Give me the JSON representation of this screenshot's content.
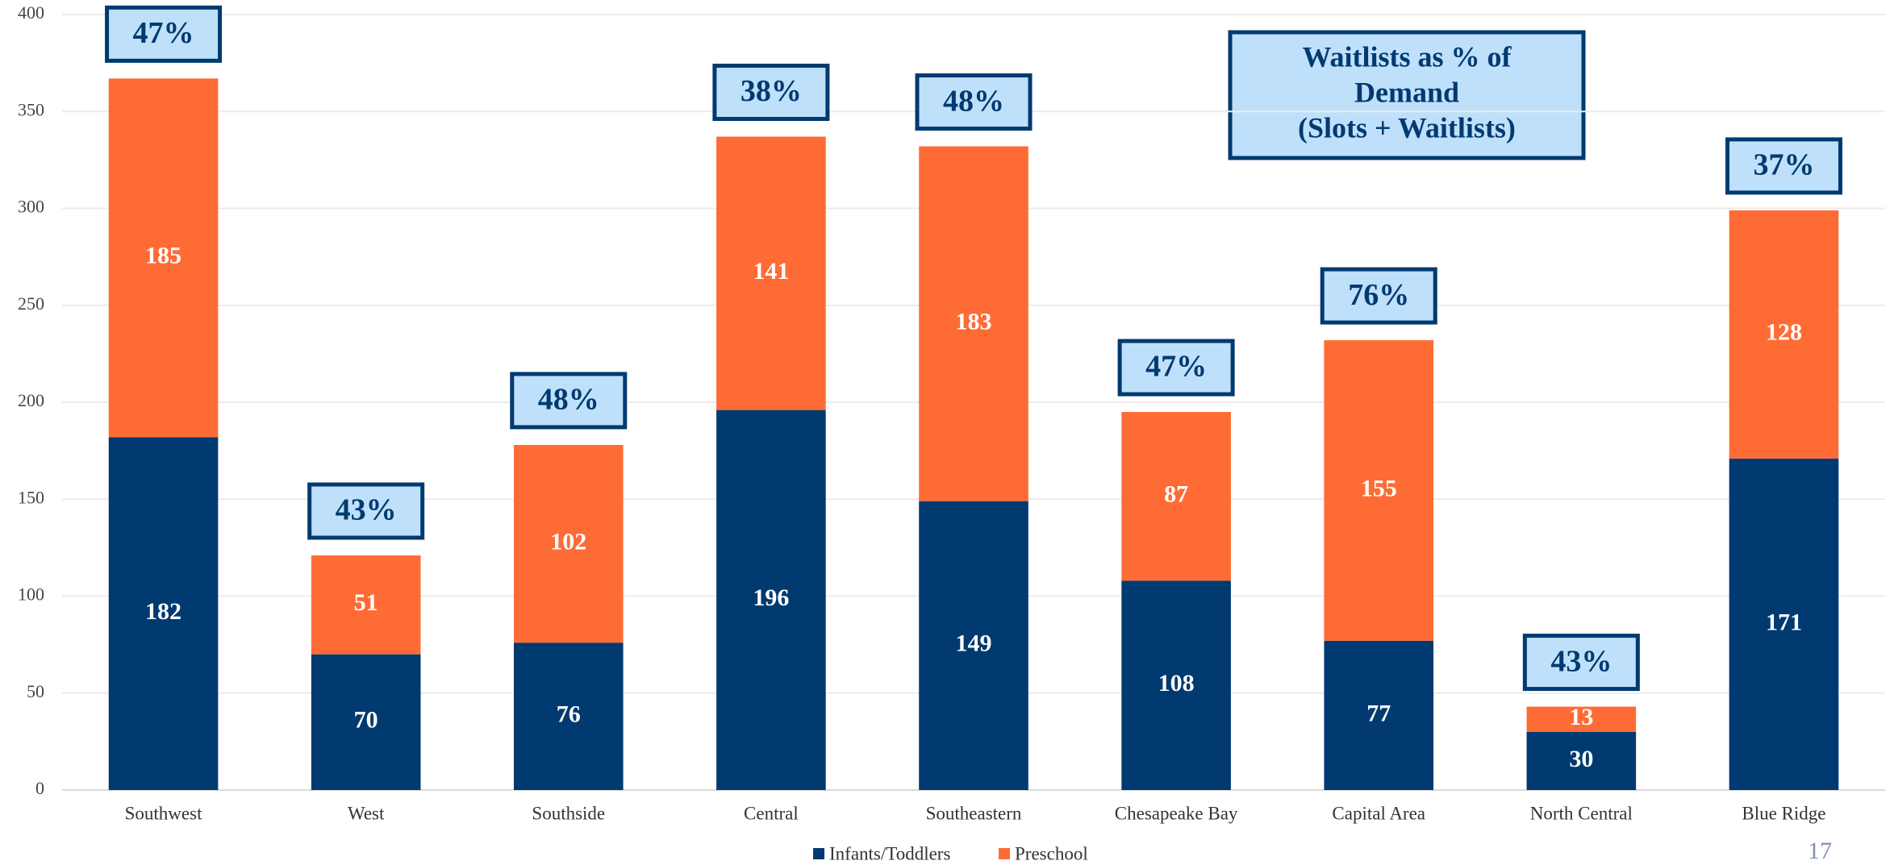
{
  "chart_data": {
    "type": "stacked_bar",
    "title": [
      "Waitlists as % of",
      "Demand",
      "(Slots + Waitlists)"
    ],
    "categories": [
      "Southwest",
      "West",
      "Southside",
      "Central",
      "Southeastern",
      "Chesapeake Bay",
      "Capital Area",
      "North Central",
      "Blue Ridge"
    ],
    "series": [
      {
        "name": "Infants/Toddlers",
        "color": "#003a70",
        "values": [
          182,
          70,
          76,
          196,
          149,
          108,
          77,
          30,
          171
        ]
      },
      {
        "name": "Preschool",
        "color": "#ff6b35",
        "values": [
          185,
          51,
          102,
          141,
          183,
          87,
          155,
          13,
          128
        ]
      }
    ],
    "annotations": [
      "47%",
      "43%",
      "48%",
      "38%",
      "48%",
      "47%",
      "76%",
      "43%",
      "37%"
    ],
    "ylim": [
      0,
      400
    ],
    "yticks": [
      0,
      50,
      100,
      150,
      200,
      250,
      300,
      350,
      400
    ],
    "grid": true,
    "legend": "bottom",
    "page_number": 17
  }
}
